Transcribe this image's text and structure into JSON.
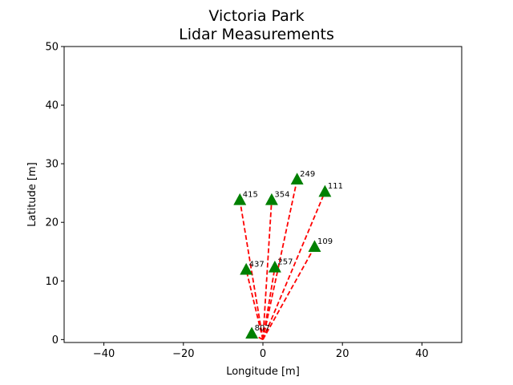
{
  "chart_data": {
    "type": "scatter",
    "title_lines": [
      "Victoria Park",
      "Lidar Measurements"
    ],
    "xlabel": "Longitude [m]",
    "ylabel": "Latitude [m]",
    "xlim": [
      -50,
      50
    ],
    "ylim": [
      -0.5,
      50
    ],
    "xticks": [
      -40,
      -20,
      0,
      20,
      40
    ],
    "xtick_labels": [
      "−40",
      "−20",
      "0",
      "20",
      "40"
    ],
    "yticks": [
      0,
      10,
      20,
      30,
      40,
      50
    ],
    "ytick_labels": [
      "0",
      "10",
      "20",
      "30",
      "40",
      "50"
    ],
    "grid": false,
    "origin": [
      0,
      0
    ],
    "marker": "triangle",
    "marker_color": "#008000",
    "ray_color": "#ff0000",
    "ray_style": "dashed",
    "points": [
      {
        "label": "415",
        "x": -5.8,
        "y": 23.8
      },
      {
        "label": "354",
        "x": 2.2,
        "y": 23.8
      },
      {
        "label": "249",
        "x": 8.6,
        "y": 27.3
      },
      {
        "label": "111",
        "x": 15.6,
        "y": 25.2
      },
      {
        "label": "109",
        "x": 13.0,
        "y": 15.8
      },
      {
        "label": "437",
        "x": -4.2,
        "y": 11.9
      },
      {
        "label": "257",
        "x": 3.0,
        "y": 12.3
      },
      {
        "label": "807",
        "x": -2.8,
        "y": 1.0
      }
    ]
  }
}
